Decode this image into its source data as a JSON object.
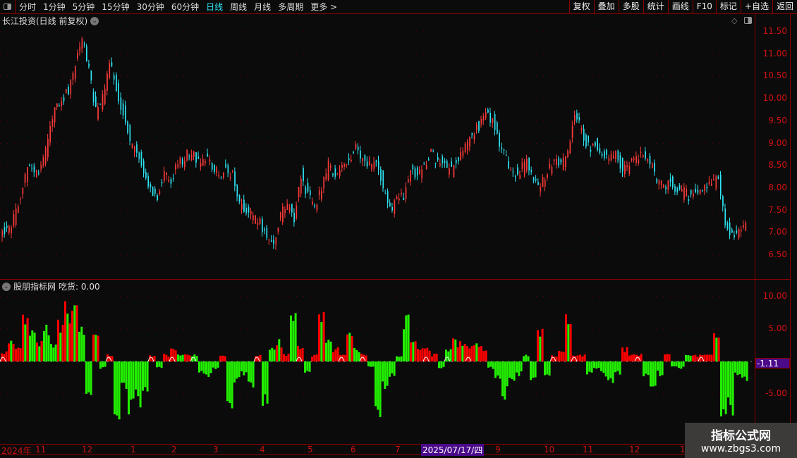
{
  "toolbar": {
    "periods": [
      "分时",
      "1分钟",
      "5分钟",
      "15分钟",
      "30分钟",
      "60分钟",
      "日线",
      "周线",
      "月线",
      "多周期",
      "更多 >"
    ],
    "active": "日线",
    "right": [
      "复权",
      "叠加",
      "多股",
      "统计",
      "画线",
      "F10",
      "标记",
      "+自选",
      "返回"
    ]
  },
  "title": "长江投资(日线 前复权)",
  "indicator": {
    "name": "股朋指标网",
    "label": "吃货: 0.00",
    "current": "-1.11"
  },
  "dates": {
    "labels": [
      "2024年",
      "11",
      "12",
      "1",
      "2",
      "3",
      "4",
      "5",
      "6",
      "7",
      "9",
      "10",
      "11",
      "12",
      "1"
    ],
    "highlight": "2025/07/17/四"
  },
  "watermark": {
    "line1": "指标公式网",
    "line2": "www.zbgs3.com"
  },
  "colors": {
    "up": "#ff3b3b",
    "down": "#2ee6f5",
    "bar_red": "#ff0000",
    "bar_green": "#22ee00",
    "axis": "#d01010"
  },
  "chart_data": [
    {
      "type": "candlestick",
      "yticks": [
        "11.50",
        "11.00",
        "10.50",
        "10.00",
        "9.50",
        "9.00",
        "8.50",
        "8.00",
        "7.50",
        "7.00",
        "6.50"
      ],
      "ylim": [
        6.3,
        11.6
      ],
      "close": [
        7.0,
        7.1,
        7.3,
        7.8,
        8.5,
        8.3,
        8.4,
        9.0,
        9.9,
        10.0,
        10.2,
        10.8,
        11.4,
        10.6,
        9.7,
        10.0,
        10.8,
        10.2,
        9.7,
        9.0,
        8.8,
        8.4,
        8.0,
        7.8,
        8.3,
        8.2,
        8.5,
        8.7,
        8.8,
        8.6,
        8.7,
        8.5,
        8.3,
        8.4,
        8.35,
        7.6,
        7.55,
        7.3,
        7.2,
        7.0,
        6.7,
        7.4,
        7.6,
        7.3,
        8.3,
        7.8,
        7.6,
        8.0,
        8.5,
        8.3,
        8.4,
        8.6,
        8.9,
        8.7,
        8.5,
        8.7,
        8.0,
        7.5,
        7.7,
        7.8,
        8.4,
        8.3,
        8.5,
        8.8,
        8.6,
        8.5,
        8.4,
        8.6,
        9.0,
        9.2,
        9.4,
        9.6,
        9.5,
        9.0,
        8.6,
        8.3,
        8.4,
        8.6,
        8.2,
        8.0,
        8.4,
        8.6,
        8.5,
        8.9,
        9.6,
        9.3,
        8.9,
        9.0,
        8.8,
        8.7,
        8.8,
        8.4,
        8.5,
        8.7,
        8.8,
        8.6,
        8.2,
        8.0,
        8.1,
        7.9,
        7.9,
        7.8,
        7.9,
        8.0,
        8.1,
        8.3,
        7.2,
        6.9,
        7.1,
        7.2
      ]
    },
    {
      "type": "bar",
      "name": "吃货",
      "yticks": [
        "10.00",
        "5.00",
        "-5.00"
      ],
      "ylim": [
        -9.5,
        10.5
      ],
      "values": [
        1.5,
        3,
        2,
        6,
        5,
        3,
        5,
        3,
        6,
        8,
        9,
        5,
        -5,
        5,
        -1,
        1,
        -9,
        -4,
        -8,
        -6,
        -4,
        1,
        -1,
        1,
        2,
        1,
        1,
        1,
        -2,
        -2,
        -1,
        1,
        -6,
        -3,
        -2,
        -4,
        1,
        -6,
        2,
        3,
        1,
        7,
        2,
        -2,
        1,
        7,
        3,
        2,
        1,
        4,
        2,
        1,
        -1,
        -8,
        -4,
        -2,
        1,
        6,
        3,
        2,
        2,
        1,
        -1,
        2,
        3,
        3,
        2,
        3,
        2,
        -1,
        -3,
        -5,
        -3,
        -2,
        1,
        -3,
        5,
        -2,
        1,
        2,
        8,
        1,
        1,
        -2,
        -1,
        -2,
        -3,
        -2,
        2,
        1,
        1,
        -2,
        -4,
        -2,
        1,
        -1,
        -1,
        1,
        1,
        1,
        1,
        4,
        -9,
        -7,
        -2,
        -3
      ],
      "positive_colors": "rrrrgrgg rrrg rrr rrgrgr rgrr g rrrgrr rgrggrr rrgrrr rrgrrrrrrrrrrgrrrrrrrr"
    }
  ]
}
